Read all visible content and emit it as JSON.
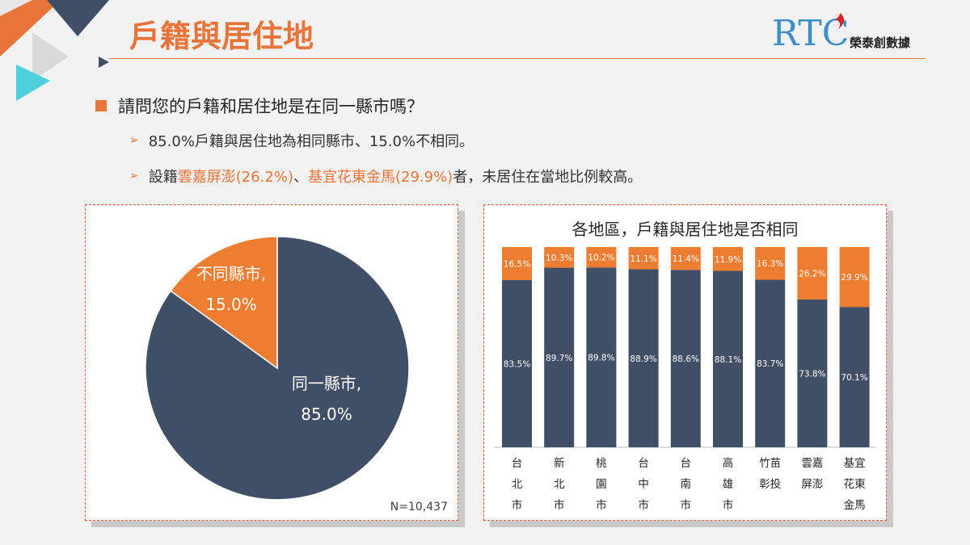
{
  "header": {
    "title": "戶籍與居住地",
    "logo_mark": "RTC",
    "logo_text": "榮泰創數據"
  },
  "question": "請問您的戶籍和居住地是在同一縣市嗎？",
  "bullets": [
    {
      "plain": "85.0%戶籍與居住地為相同縣市、15.0%不相同。"
    },
    {
      "pre": "設籍",
      "h1": "雲嘉屏澎(26.2%)",
      "mid": "、",
      "h2": "基宜花東金馬(29.9%)",
      "post": "者，未居住在當地比例較高。"
    }
  ],
  "colors": {
    "navy": "#404e66",
    "orange": "#ee7d31",
    "accent": "#e9743a"
  },
  "chart_data": [
    {
      "type": "pie",
      "slices": [
        {
          "label": "同一縣市,",
          "value": 85.0,
          "display": "85.0%"
        },
        {
          "label": "不同縣市,",
          "value": 15.0,
          "display": "15.0%"
        }
      ],
      "note": "N=10,437"
    },
    {
      "type": "bar",
      "stacked": true,
      "title": "各地區，戶籍與居住地是否相同",
      "categories": [
        [
          "台",
          "北",
          "市"
        ],
        [
          "新",
          "北",
          "市"
        ],
        [
          "桃",
          "園",
          "市"
        ],
        [
          "台",
          "中",
          "市"
        ],
        [
          "台",
          "南",
          "市"
        ],
        [
          "高",
          "雄",
          "市"
        ],
        [
          "竹苗",
          "彰投"
        ],
        [
          "雲嘉",
          "屏澎"
        ],
        [
          "基宜",
          "花東",
          "金馬"
        ]
      ],
      "series": [
        {
          "values": [
            83.5,
            89.7,
            89.8,
            88.9,
            88.6,
            88.1,
            83.7,
            73.8,
            70.1
          ]
        },
        {
          "values": [
            16.5,
            10.3,
            10.2,
            11.1,
            11.4,
            11.9,
            16.3,
            26.2,
            29.9
          ]
        }
      ],
      "ylim": [
        0,
        100
      ]
    }
  ]
}
